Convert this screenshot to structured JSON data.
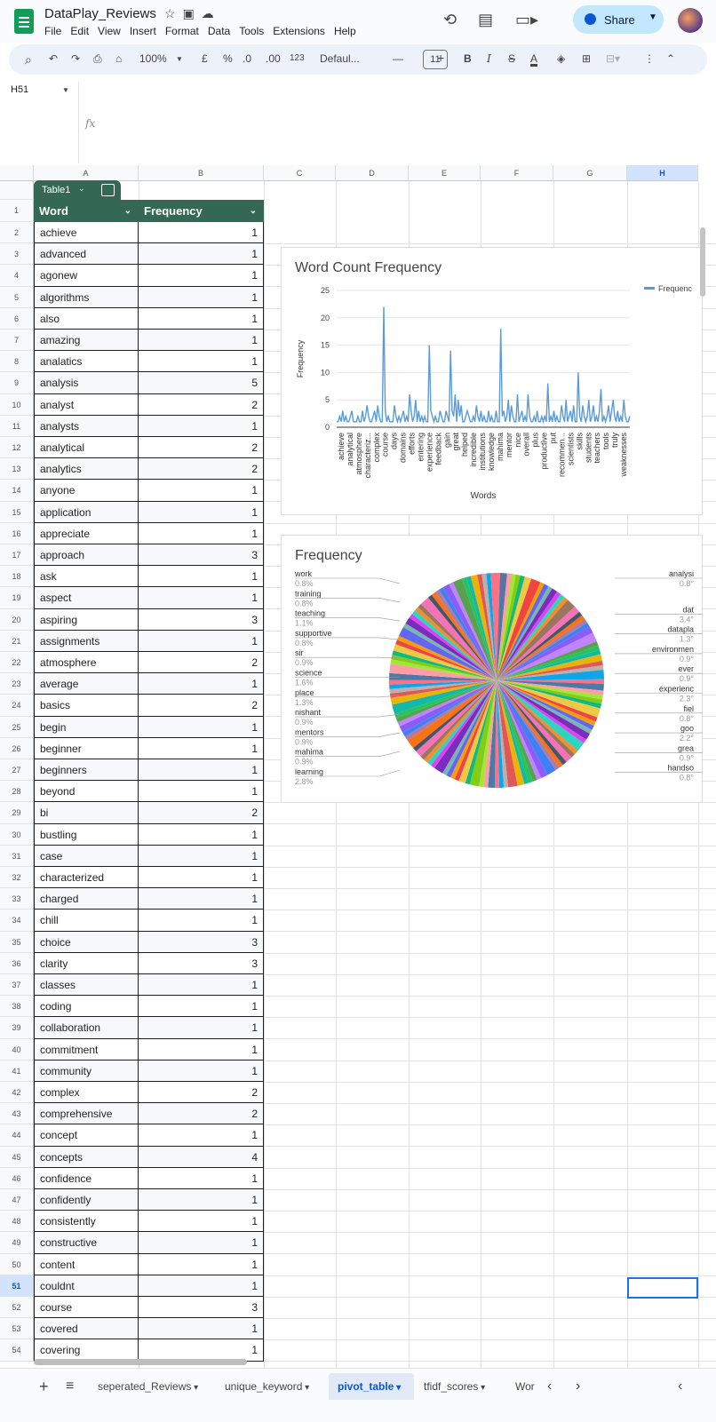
{
  "app": {
    "title": "DataPlay_Reviews",
    "menu": [
      "File",
      "Edit",
      "View",
      "Insert",
      "Format",
      "Data",
      "Tools",
      "Extensions",
      "Help"
    ],
    "share_label": "Share"
  },
  "toolbar": {
    "zoom": "100%",
    "currency": "£",
    "percent": "%",
    "dec_decrease": ".0",
    "dec_increase": ".00",
    "number_format": "123",
    "font": "Defaul...",
    "font_size": "11",
    "bold": "B",
    "italic": "I",
    "strikethrough": "S",
    "text_color": "A"
  },
  "formula_bar": {
    "name_box": "H51",
    "fx": "fx"
  },
  "columns": [
    "A",
    "B",
    "C",
    "D",
    "E",
    "F",
    "G",
    "H"
  ],
  "selected_column": "H",
  "selected_row": "51",
  "table": {
    "name": "Table1",
    "headers": [
      "Word",
      "Frequency"
    ],
    "rows": [
      [
        "achieve",
        "1"
      ],
      [
        "advanced",
        "1"
      ],
      [
        "agonew",
        "1"
      ],
      [
        "algorithms",
        "1"
      ],
      [
        "also",
        "1"
      ],
      [
        "amazing",
        "1"
      ],
      [
        "analatics",
        "1"
      ],
      [
        "analysis",
        "5"
      ],
      [
        "analyst",
        "2"
      ],
      [
        "analysts",
        "1"
      ],
      [
        "analytical",
        "2"
      ],
      [
        "analytics",
        "2"
      ],
      [
        "anyone",
        "1"
      ],
      [
        "application",
        "1"
      ],
      [
        "appreciate",
        "1"
      ],
      [
        "approach",
        "3"
      ],
      [
        "ask",
        "1"
      ],
      [
        "aspect",
        "1"
      ],
      [
        "aspiring",
        "3"
      ],
      [
        "assignments",
        "1"
      ],
      [
        "atmosphere",
        "2"
      ],
      [
        "average",
        "1"
      ],
      [
        "basics",
        "2"
      ],
      [
        "begin",
        "1"
      ],
      [
        "beginner",
        "1"
      ],
      [
        "beginners",
        "1"
      ],
      [
        "beyond",
        "1"
      ],
      [
        "bi",
        "2"
      ],
      [
        "bustling",
        "1"
      ],
      [
        "case",
        "1"
      ],
      [
        "characterized",
        "1"
      ],
      [
        "charged",
        "1"
      ],
      [
        "chill",
        "1"
      ],
      [
        "choice",
        "3"
      ],
      [
        "clarity",
        "3"
      ],
      [
        "classes",
        "1"
      ],
      [
        "coding",
        "1"
      ],
      [
        "collaboration",
        "1"
      ],
      [
        "commitment",
        "1"
      ],
      [
        "community",
        "1"
      ],
      [
        "complex",
        "2"
      ],
      [
        "comprehensive",
        "2"
      ],
      [
        "concept",
        "1"
      ],
      [
        "concepts",
        "4"
      ],
      [
        "confidence",
        "1"
      ],
      [
        "confidently",
        "1"
      ],
      [
        "consistently",
        "1"
      ],
      [
        "constructive",
        "1"
      ],
      [
        "content",
        "1"
      ],
      [
        "couldnt",
        "1"
      ],
      [
        "course",
        "3"
      ],
      [
        "covered",
        "1"
      ],
      [
        "covering",
        "1"
      ]
    ]
  },
  "chart_data": [
    {
      "type": "line",
      "title": "Word Count Frequency",
      "xlabel": "Words",
      "ylabel": "Frequency",
      "ylim": [
        0,
        25
      ],
      "yticks": [
        0,
        5,
        10,
        15,
        20,
        25
      ],
      "legend": "Frequenc",
      "legend_position": "right",
      "x_tick_labels": [
        "achieve",
        "analytical",
        "atmosphere",
        "characteriz...",
        "complex",
        "course",
        "days",
        "domains",
        "efforts",
        "entering",
        "experience",
        "feedback",
        "gain",
        "great",
        "helped",
        "incredible",
        "institutions",
        "knowledge",
        "mahima",
        "mentor",
        "nice",
        "overall",
        "plus",
        "productive",
        "put",
        "recommen...",
        "scientists",
        "skills",
        "students",
        "teachers",
        "tools",
        "truly",
        "weaknesses"
      ],
      "values": [
        1,
        1,
        2,
        1,
        3,
        1,
        2,
        1,
        1,
        2,
        3,
        1,
        1,
        1,
        2,
        1,
        1,
        3,
        1,
        2,
        4,
        2,
        1,
        1,
        2,
        3,
        1,
        4,
        2,
        1,
        1,
        22,
        3,
        1,
        2,
        1,
        1,
        1,
        4,
        2,
        1,
        2,
        1,
        2,
        3,
        1,
        2,
        1,
        6,
        3,
        1,
        2,
        5,
        1,
        3,
        1,
        2,
        1,
        2,
        1,
        1,
        15,
        3,
        2,
        1,
        2,
        1,
        1,
        3,
        2,
        1,
        1,
        3,
        2,
        1,
        14,
        3,
        2,
        6,
        1,
        5,
        2,
        4,
        1,
        1,
        2,
        3,
        2,
        1,
        1,
        2,
        1,
        4,
        2,
        1,
        3,
        1,
        2,
        1,
        1,
        3,
        1,
        2,
        1,
        1,
        3,
        1,
        1,
        18,
        2,
        3,
        1,
        2,
        5,
        1,
        4,
        2,
        1,
        1,
        6,
        1,
        2,
        3,
        1,
        2,
        1,
        6,
        2,
        1,
        1,
        2,
        1,
        3,
        1,
        1,
        2,
        1,
        2,
        1,
        8,
        1,
        2,
        1,
        3,
        1,
        2,
        1,
        1,
        4,
        2,
        1,
        5,
        1,
        2,
        3,
        1,
        4,
        1,
        1,
        10,
        2,
        1,
        4,
        2,
        1,
        2,
        5,
        1,
        2,
        4,
        1,
        2,
        1,
        3,
        7,
        1,
        2,
        1,
        2,
        4,
        1,
        3,
        5,
        2,
        1,
        3,
        1,
        2,
        1,
        5,
        2,
        1,
        1,
        2
      ]
    },
    {
      "type": "pie",
      "title": "Frequency",
      "labels_left": [
        {
          "label": "work",
          "pct": "0.8%"
        },
        {
          "label": "training",
          "pct": "0.8%"
        },
        {
          "label": "teaching",
          "pct": "1.1%"
        },
        {
          "label": "supportive",
          "pct": "0.8%"
        },
        {
          "label": "sir",
          "pct": "0.9%"
        },
        {
          "label": "science",
          "pct": "1.6%"
        },
        {
          "label": "place",
          "pct": "1.3%"
        },
        {
          "label": "nishant",
          "pct": "0.9%"
        },
        {
          "label": "mentors",
          "pct": "0.9%"
        },
        {
          "label": "mahima",
          "pct": "0.9%"
        },
        {
          "label": "learning",
          "pct": "2.8%"
        }
      ],
      "labels_right": [
        {
          "label": "analysi",
          "pct": "0.8°"
        },
        {
          "label": "dat",
          "pct": "3.4°"
        },
        {
          "label": "dataplа",
          "pct": "1.3°"
        },
        {
          "label": "environmen",
          "pct": "0.9°"
        },
        {
          "label": "ever",
          "pct": "0.9°"
        },
        {
          "label": "experienc",
          "pct": "2.3°"
        },
        {
          "label": "fiel",
          "pct": "0.8°"
        },
        {
          "label": "goo",
          "pct": "2.2°"
        },
        {
          "label": "grea",
          "pct": "0.9°"
        },
        {
          "label": "handso",
          "pct": "0.8°"
        }
      ],
      "slice_count": 130
    }
  ],
  "sheet_tabs": [
    "seperated_Reviews",
    "unique_keyword",
    "pivot_table",
    "tfidf_scores",
    "Wor"
  ],
  "active_tab": "pivot_table"
}
